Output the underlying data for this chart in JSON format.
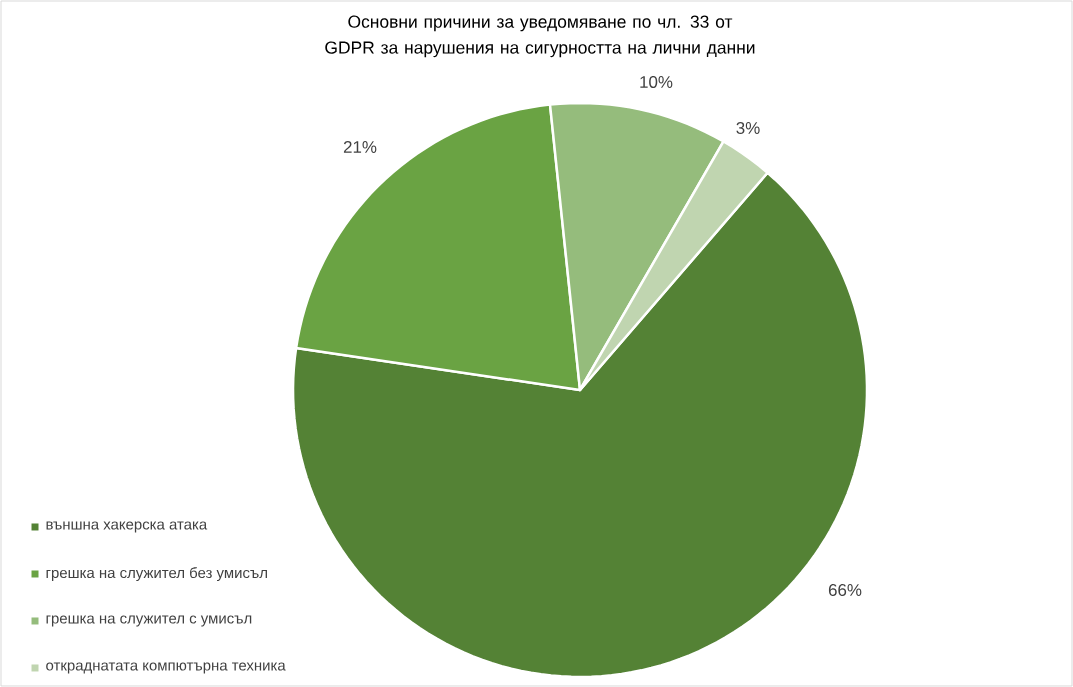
{
  "chart_data": {
    "type": "pie",
    "title": "Основни причини за уведомяване по чл. 33 от GDPR за нарушения на сигурността на лични данни",
    "categories": [
      "външна хакерска атака",
      "грешка на служител без умисъл",
      "грешка на служител с умисъл",
      "откраднатата компютърна техника"
    ],
    "values": [
      66,
      21,
      10,
      3
    ],
    "value_labels": [
      "66%",
      "21%",
      "10%",
      "3%"
    ],
    "colors": [
      "#548235",
      "#6aa343",
      "#95bc7c",
      "#c0d5b0"
    ],
    "legend": "bottom left"
  }
}
